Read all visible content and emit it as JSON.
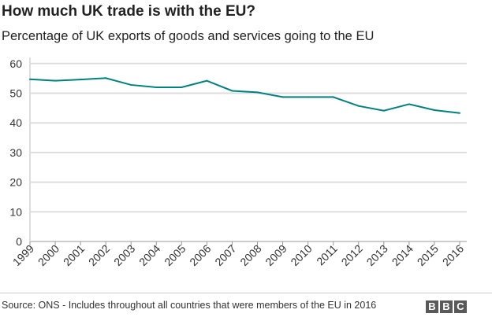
{
  "chart_data": {
    "type": "line",
    "title": "How much UK trade is with the EU?",
    "subtitle": "Percentage of UK exports of goods and services going to the EU",
    "x": [
      "1999",
      "2000",
      "2001",
      "2002",
      "2003",
      "2004",
      "2005",
      "2006",
      "2007",
      "2008",
      "2009",
      "2010",
      "2011",
      "2012",
      "2013",
      "2014",
      "2015",
      "2016"
    ],
    "series": [
      {
        "values": [
          54.7,
          54.2,
          54.6,
          55.1,
          52.8,
          52.0,
          52.0,
          54.2,
          50.8,
          50.3,
          48.7,
          48.7,
          48.7,
          45.7,
          44.1,
          46.3,
          44.3,
          43.3
        ],
        "color": "#00827f"
      }
    ],
    "yticks": [
      0,
      10,
      20,
      30,
      40,
      50,
      60
    ],
    "ylim": [
      0,
      62
    ],
    "grid": true
  },
  "footer": {
    "source": "Source: ONS - Includes throughout all countries that were members of the EU in 2016",
    "logo": [
      "B",
      "B",
      "C"
    ]
  }
}
